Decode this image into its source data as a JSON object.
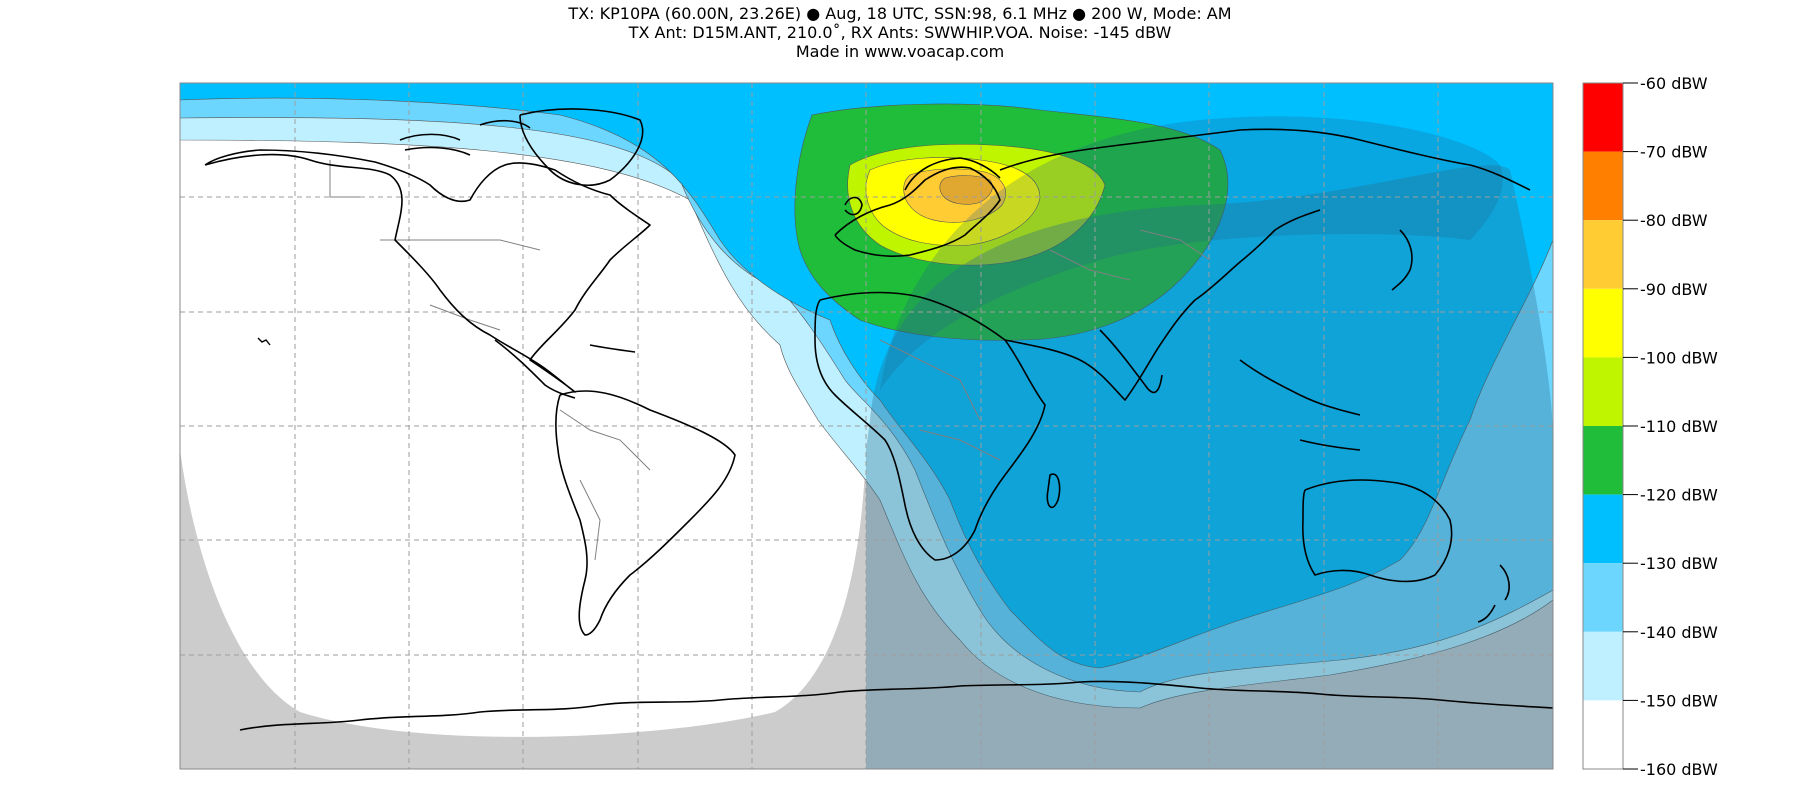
{
  "header": {
    "line1": "TX: KP10PA (60.00N, 23.26E) ● Aug, 18 UTC, SSN:98, 6.1 MHz ● 200 W, Mode: AM",
    "line2": "TX Ant: D15M.ANT, 210.0˚, RX Ants: SWWHIP.VOA. Noise: -145 dBW",
    "line3": "Made in www.voacap.com"
  },
  "legend": {
    "ticks": [
      "-60 dBW",
      "-70 dBW",
      "-80 dBW",
      "-90 dBW",
      "-100 dBW",
      "-110 dBW",
      "-120 dBW",
      "-130 dBW",
      "-140 dBW",
      "-150 dBW",
      "-160 dBW"
    ],
    "bands": [
      {
        "range": "-70 to -60 dBW",
        "color": "#ff0000"
      },
      {
        "range": "-80 to -70 dBW",
        "color": "#ff7f00"
      },
      {
        "range": "-90 to -80 dBW",
        "color": "#ffcc33"
      },
      {
        "range": "-100 to -90 dBW",
        "color": "#ffff00"
      },
      {
        "range": "-110 to -100 dBW",
        "color": "#c0f500"
      },
      {
        "range": "-120 to -110 dBW",
        "color": "#1fbd3a"
      },
      {
        "range": "-130 to -120 dBW",
        "color": "#00bfff"
      },
      {
        "range": "-140 to -130 dBW",
        "color": "#6dd6ff"
      },
      {
        "range": "-150 to -140 dBW",
        "color": "#bff0ff"
      },
      {
        "range": "-160 to -150 dBW",
        "color": "#ffffff"
      }
    ]
  },
  "map": {
    "ocean_bg": "#ffffff",
    "night_shading": "#cccccc",
    "coastline": "#000000",
    "borders": "#808080",
    "gridlines": "dashed"
  }
}
